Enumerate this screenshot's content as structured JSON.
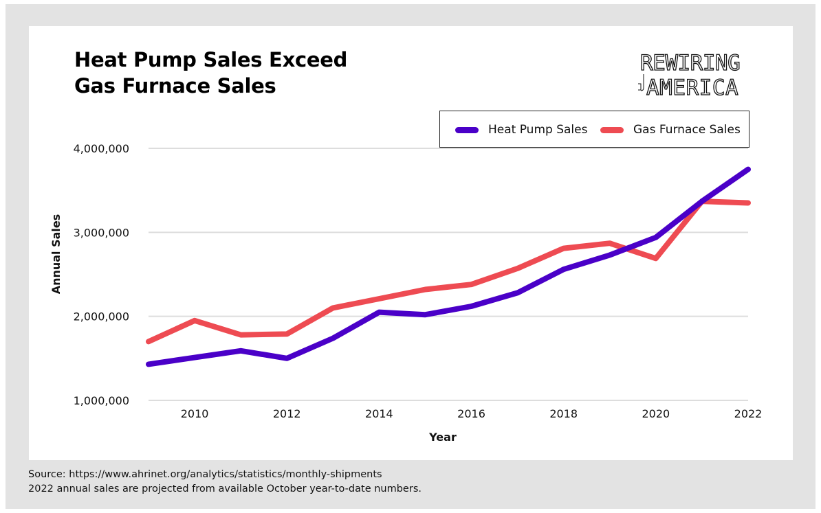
{
  "title_lines": [
    "Heat Pump Sales Exceed",
    "Gas Furnace Sales"
  ],
  "logo": {
    "line1": "REWIRING",
    "line2": "AMERICA",
    "icon": "plug-icon"
  },
  "legend": [
    {
      "label": "Heat Pump Sales",
      "color": "#4a00c8"
    },
    {
      "label": "Gas Furnace Sales",
      "color": "#ee4b52"
    }
  ],
  "source": {
    "line1": "Source: https://www.ahrinet.org/analytics/statistics/monthly-shipments",
    "line2": "2022 annual sales are projected from available October year-to-date numbers."
  },
  "chart_data": {
    "type": "line",
    "title": "Heat Pump Sales Exceed Gas Furnace Sales",
    "xlabel": "Year",
    "ylabel": "Annual Sales",
    "x": [
      2009,
      2010,
      2011,
      2012,
      2013,
      2014,
      2015,
      2016,
      2017,
      2018,
      2019,
      2020,
      2021,
      2022
    ],
    "xlim": [
      2009,
      2022
    ],
    "ylim": [
      1000000,
      4000000
    ],
    "xticks": [
      2010,
      2012,
      2014,
      2016,
      2018,
      2020,
      2022
    ],
    "yticks": [
      1000000,
      2000000,
      3000000,
      4000000
    ],
    "ytick_labels": [
      "1,000,000",
      "2,000,000",
      "3,000,000",
      "4,000,000"
    ],
    "grid": "horizontal",
    "legend_position": "top-right",
    "series": [
      {
        "name": "Heat Pump Sales",
        "color": "#4a00c8",
        "values": [
          1430000,
          1510000,
          1590000,
          1500000,
          1740000,
          2050000,
          2020000,
          2120000,
          2280000,
          2560000,
          2730000,
          2940000,
          3370000,
          3750000
        ]
      },
      {
        "name": "Gas Furnace Sales",
        "color": "#ee4b52",
        "values": [
          1700000,
          1950000,
          1780000,
          1790000,
          2100000,
          2210000,
          2320000,
          2380000,
          2570000,
          2810000,
          2870000,
          2690000,
          3370000,
          3350000
        ]
      }
    ]
  }
}
